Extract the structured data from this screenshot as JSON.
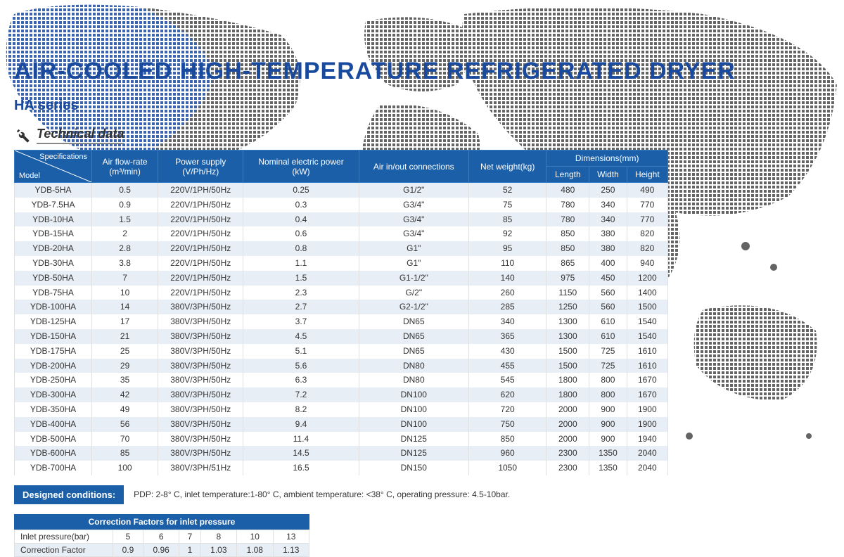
{
  "title": "AIR-COOLED HIGH-TEMPERATURE REFRIGERATED DRYER",
  "subtitle": "HA series",
  "tech_label": "Technical data",
  "table": {
    "diag_top": "Specifications",
    "diag_bottom": "Model",
    "headers": {
      "airflow": "Air flow-rate",
      "airflow_unit": "(m³/min)",
      "power": "Power supply",
      "power_unit": "(V/Ph/Hz)",
      "nominal": "Nominal electric power",
      "nominal_unit": "(kW)",
      "conn": "Air in/out connections",
      "weight": "Net weight(kg)",
      "dims": "Dimensions(mm)",
      "length": "Length",
      "width": "Width",
      "height": "Height"
    },
    "rows": [
      {
        "model": "YDB-5HA",
        "air": "0.5",
        "pwr": "220V/1PH/50Hz",
        "nom": "0.25",
        "conn": "G1/2\"",
        "wt": "52",
        "l": "480",
        "w": "250",
        "h": "490"
      },
      {
        "model": "YDB-7.5HA",
        "air": "0.9",
        "pwr": "220V/1PH/50Hz",
        "nom": "0.3",
        "conn": "G3/4\"",
        "wt": "75",
        "l": "780",
        "w": "340",
        "h": "770"
      },
      {
        "model": "YDB-10HA",
        "air": "1.5",
        "pwr": "220V/1PH/50Hz",
        "nom": "0.4",
        "conn": "G3/4\"",
        "wt": "85",
        "l": "780",
        "w": "340",
        "h": "770"
      },
      {
        "model": "YDB-15HA",
        "air": "2",
        "pwr": "220V/1PH/50Hz",
        "nom": "0.6",
        "conn": "G3/4\"",
        "wt": "92",
        "l": "850",
        "w": "380",
        "h": "820"
      },
      {
        "model": "YDB-20HA",
        "air": "2.8",
        "pwr": "220V/1PH/50Hz",
        "nom": "0.8",
        "conn": "G1\"",
        "wt": "95",
        "l": "850",
        "w": "380",
        "h": "820"
      },
      {
        "model": "YDB-30HA",
        "air": "3.8",
        "pwr": "220V/1PH/50Hz",
        "nom": "1.1",
        "conn": "G1\"",
        "wt": "110",
        "l": "865",
        "w": "400",
        "h": "940"
      },
      {
        "model": "YDB-50HA",
        "air": "7",
        "pwr": "220V/1PH/50Hz",
        "nom": "1.5",
        "conn": "G1-1/2\"",
        "wt": "140",
        "l": "975",
        "w": "450",
        "h": "1200"
      },
      {
        "model": "YDB-75HA",
        "air": "10",
        "pwr": "220V/1PH/50Hz",
        "nom": "2.3",
        "conn": "G/2\"",
        "wt": "260",
        "l": "1150",
        "w": "560",
        "h": "1400"
      },
      {
        "model": "YDB-100HA",
        "air": "14",
        "pwr": "380V/3PH/50Hz",
        "nom": "2.7",
        "conn": "G2-1/2\"",
        "wt": "285",
        "l": "1250",
        "w": "560",
        "h": "1500"
      },
      {
        "model": "YDB-125HA",
        "air": "17",
        "pwr": "380V/3PH/50Hz",
        "nom": "3.7",
        "conn": "DN65",
        "wt": "340",
        "l": "1300",
        "w": "610",
        "h": "1540"
      },
      {
        "model": "YDB-150HA",
        "air": "21",
        "pwr": "380V/3PH/50Hz",
        "nom": "4.5",
        "conn": "DN65",
        "wt": "365",
        "l": "1300",
        "w": "610",
        "h": "1540"
      },
      {
        "model": "YDB-175HA",
        "air": "25",
        "pwr": "380V/3PH/50Hz",
        "nom": "5.1",
        "conn": "DN65",
        "wt": "430",
        "l": "1500",
        "w": "725",
        "h": "1610"
      },
      {
        "model": "YDB-200HA",
        "air": "29",
        "pwr": "380V/3PH/50Hz",
        "nom": "5.6",
        "conn": "DN80",
        "wt": "455",
        "l": "1500",
        "w": "725",
        "h": "1610"
      },
      {
        "model": "YDB-250HA",
        "air": "35",
        "pwr": "380V/3PH/50Hz",
        "nom": "6.3",
        "conn": "DN80",
        "wt": "545",
        "l": "1800",
        "w": "800",
        "h": "1670"
      },
      {
        "model": "YDB-300HA",
        "air": "42",
        "pwr": "380V/3PH/50Hz",
        "nom": "7.2",
        "conn": "DN100",
        "wt": "620",
        "l": "1800",
        "w": "800",
        "h": "1670"
      },
      {
        "model": "YDB-350HA",
        "air": "49",
        "pwr": "380V/3PH/50Hz",
        "nom": "8.2",
        "conn": "DN100",
        "wt": "720",
        "l": "2000",
        "w": "900",
        "h": "1900"
      },
      {
        "model": "YDB-400HA",
        "air": "56",
        "pwr": "380V/3PH/50Hz",
        "nom": "9.4",
        "conn": "DN100",
        "wt": "750",
        "l": "2000",
        "w": "900",
        "h": "1900"
      },
      {
        "model": "YDB-500HA",
        "air": "70",
        "pwr": "380V/3PH/50Hz",
        "nom": "11.4",
        "conn": "DN125",
        "wt": "850",
        "l": "2000",
        "w": "900",
        "h": "1940"
      },
      {
        "model": "YDB-600HA",
        "air": "85",
        "pwr": "380V/3PH/50Hz",
        "nom": "14.5",
        "conn": "DN125",
        "wt": "960",
        "l": "2300",
        "w": "1350",
        "h": "2040"
      },
      {
        "model": "YDB-700HA",
        "air": "100",
        "pwr": "380V/3PH/51Hz",
        "nom": "16.5",
        "conn": "DN150",
        "wt": "1050",
        "l": "2300",
        "w": "1350",
        "h": "2040"
      }
    ]
  },
  "designed": {
    "label": "Designed conditions:",
    "value": "PDP: 2-8° C, inlet temperature:1-80° C, ambient temperature: <38° C, operating pressure: 4.5-10bar."
  },
  "correction": {
    "title": "Correction Factors for inlet pressure",
    "row1_label": "Inlet pressure(bar)",
    "row2_label": "Correction Factor",
    "pressures": [
      "5",
      "6",
      "7",
      "8",
      "10",
      "13"
    ],
    "factors": [
      "0.9",
      "0.96",
      "1",
      "1.03",
      "1.08",
      "1.13"
    ]
  },
  "colors": {
    "header_bg": "#1a5fa8",
    "title_color": "#1a4a9e",
    "row_odd": "#e8eef5",
    "row_even": "#ffffff",
    "map_dark": "#4a4a4a",
    "map_blue": "#1a4a9e"
  }
}
